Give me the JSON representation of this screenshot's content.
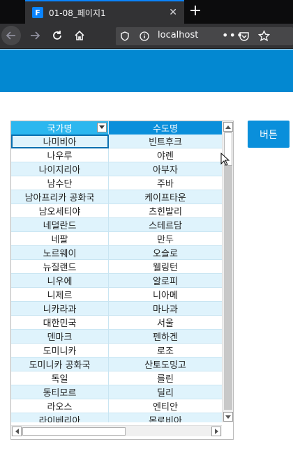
{
  "browser": {
    "tab_favicon": "F",
    "tab_title": "01-08_페이지1",
    "tab_close": "✕",
    "new_tab": "+",
    "url": "localhost",
    "url_more": "•••"
  },
  "grid": {
    "columns": [
      "국가명",
      "수도명"
    ],
    "rows": [
      [
        "나미비아",
        "빈트후크"
      ],
      [
        "나우루",
        "야렌"
      ],
      [
        "나이지리아",
        "아부자"
      ],
      [
        "남수단",
        "주바"
      ],
      [
        "남아프리카 공화국",
        "케이프타운"
      ],
      [
        "남오세티야",
        "츠힌발리"
      ],
      [
        "네덜란드",
        "스테르담"
      ],
      [
        "네팔",
        "만두"
      ],
      [
        "노르웨이",
        "오슬로"
      ],
      [
        "뉴질랜드",
        "웰링턴"
      ],
      [
        "니우에",
        "알로피"
      ],
      [
        "니제르",
        "니아메"
      ],
      [
        "니카라과",
        "마나과"
      ],
      [
        "대한민국",
        "서울"
      ],
      [
        "덴마크",
        "펜하겐"
      ],
      [
        "도미니카",
        "로조"
      ],
      [
        "도미니카 공화국",
        "산토도밍고"
      ],
      [
        "독일",
        "를린"
      ],
      [
        "동티모르",
        "딜리"
      ],
      [
        "라오스",
        "엔티안"
      ],
      [
        "라이베리아",
        "몬로비아"
      ]
    ]
  },
  "action_button": "버튼",
  "colors": {
    "app_header": "#0388d1",
    "header_country": "#2cb7ef",
    "header_capital": "#0a8fdb",
    "row_alt": "#dff3fc",
    "button": "#0a8fdb"
  }
}
